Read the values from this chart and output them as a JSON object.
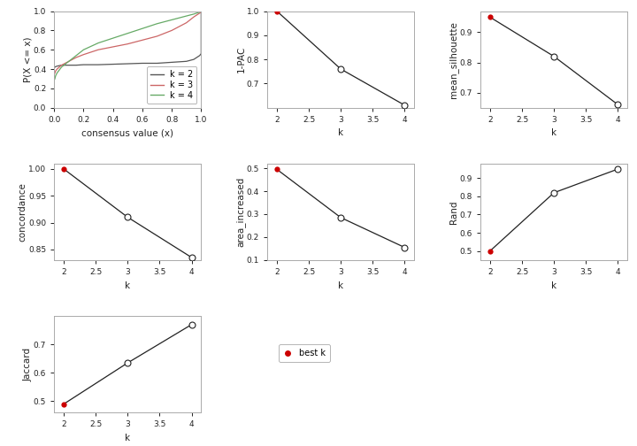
{
  "ecdf_k2": {
    "x": [
      0.0,
      0.0,
      0.005,
      0.01,
      0.02,
      0.05,
      0.1,
      0.15,
      0.2,
      0.3,
      0.4,
      0.5,
      0.6,
      0.7,
      0.8,
      0.9,
      0.95,
      0.99,
      1.0,
      1.0
    ],
    "y": [
      0.0,
      0.41,
      0.42,
      0.425,
      0.43,
      0.44,
      0.44,
      0.44,
      0.445,
      0.445,
      0.45,
      0.455,
      0.46,
      0.46,
      0.47,
      0.48,
      0.5,
      0.54,
      0.56,
      1.0
    ]
  },
  "ecdf_k3": {
    "x": [
      0.0,
      0.0,
      0.005,
      0.01,
      0.02,
      0.05,
      0.1,
      0.15,
      0.2,
      0.3,
      0.4,
      0.5,
      0.6,
      0.7,
      0.8,
      0.9,
      0.95,
      0.99,
      1.0,
      1.0
    ],
    "y": [
      0.0,
      0.34,
      0.36,
      0.38,
      0.4,
      0.44,
      0.48,
      0.52,
      0.55,
      0.6,
      0.63,
      0.66,
      0.7,
      0.74,
      0.8,
      0.88,
      0.94,
      0.98,
      0.99,
      1.0
    ]
  },
  "ecdf_k4": {
    "x": [
      0.0,
      0.0,
      0.005,
      0.01,
      0.02,
      0.05,
      0.1,
      0.15,
      0.2,
      0.3,
      0.4,
      0.5,
      0.6,
      0.7,
      0.8,
      0.9,
      0.95,
      0.99,
      1.0,
      1.0
    ],
    "y": [
      0.0,
      0.28,
      0.3,
      0.33,
      0.36,
      0.42,
      0.48,
      0.54,
      0.6,
      0.67,
      0.72,
      0.77,
      0.82,
      0.87,
      0.91,
      0.95,
      0.97,
      0.99,
      0.995,
      1.0
    ]
  },
  "ecdf_colors": {
    "k2": "#555555",
    "k3": "#cc6666",
    "k4": "#66aa66"
  },
  "pac": {
    "k": [
      2,
      3,
      4
    ],
    "y": [
      1.0,
      0.76,
      0.61
    ],
    "best_k": 2,
    "ylim": [
      0.6,
      1.0
    ],
    "yticks": [
      0.7,
      0.8,
      0.9,
      1.0
    ]
  },
  "silhouette": {
    "k": [
      2,
      3,
      4
    ],
    "y": [
      0.95,
      0.82,
      0.66
    ],
    "best_k": 2,
    "ylim": [
      0.65,
      0.97
    ],
    "yticks": [
      0.7,
      0.8,
      0.9
    ]
  },
  "concordance": {
    "k": [
      2,
      3,
      4
    ],
    "y": [
      1.0,
      0.91,
      0.835
    ],
    "best_k": 2,
    "ylim": [
      0.83,
      1.01
    ],
    "yticks": [
      0.85,
      0.9,
      0.95,
      1.0
    ]
  },
  "area_increased": {
    "k": [
      2,
      3,
      4
    ],
    "y": [
      0.495,
      0.285,
      0.155
    ],
    "best_k": 2,
    "ylim": [
      0.1,
      0.52
    ],
    "yticks": [
      0.1,
      0.2,
      0.3,
      0.4,
      0.5
    ]
  },
  "rand": {
    "k": [
      2,
      3,
      4
    ],
    "y": [
      0.5,
      0.82,
      0.95
    ],
    "best_k": 2,
    "ylim": [
      0.45,
      0.98
    ],
    "yticks": [
      0.5,
      0.6,
      0.7,
      0.8,
      0.9
    ]
  },
  "jaccard": {
    "k": [
      2,
      3,
      4
    ],
    "y": [
      0.49,
      0.635,
      0.77
    ],
    "best_k": 2,
    "ylim": [
      0.46,
      0.8
    ],
    "yticks": [
      0.5,
      0.6,
      0.7
    ]
  },
  "best_k_color": "#cc0000",
  "bg_color": "#ffffff",
  "line_color": "#222222",
  "font_size": 7.5,
  "tick_font_size": 6.5,
  "legend_font_size": 7
}
